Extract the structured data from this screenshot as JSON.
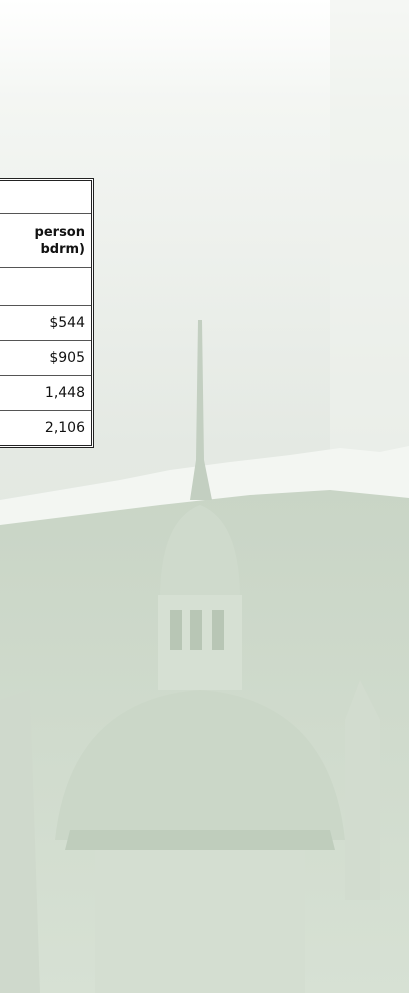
{
  "table": {
    "header": [
      "person",
      "bdrm)"
    ],
    "rows": [
      "$544",
      "$905",
      "1,448",
      "2,106"
    ]
  }
}
